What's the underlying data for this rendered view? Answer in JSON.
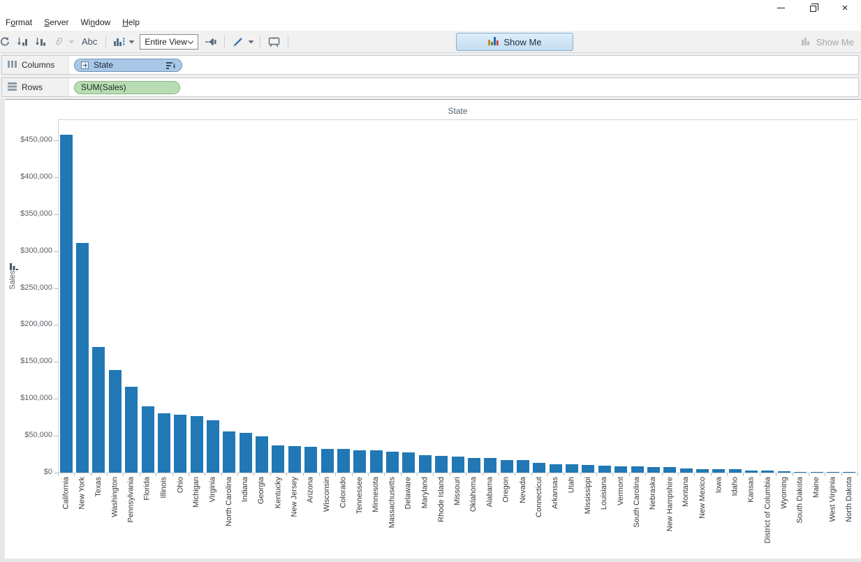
{
  "window": {
    "controls": [
      {
        "name": "minimize"
      },
      {
        "name": "restore"
      },
      {
        "name": "close"
      }
    ]
  },
  "menubar": {
    "items": [
      {
        "label": "Format",
        "underline": 1
      },
      {
        "label": "Server",
        "underline": 0
      },
      {
        "label": "Window",
        "underline": 2
      },
      {
        "label": "Help",
        "underline": 0
      }
    ]
  },
  "toolbar": {
    "icons": [
      "swap-rows-columns",
      "sort-ascending",
      "sort-descending",
      "group-members",
      "group-dropdown",
      "show-mark-labels",
      "show-hide-cards",
      "fit-selector",
      "fix-axes",
      "highlight",
      "presentation-mode"
    ],
    "abc_label": "Abc",
    "fit_selector": {
      "value": "Entire View"
    },
    "show_me_button": {
      "label": "Show Me"
    },
    "show_me_disabled": {
      "label": "Show Me"
    }
  },
  "shelves": {
    "columns": {
      "label": "Columns",
      "pill": {
        "label": "State",
        "type": "dimension",
        "color": "#a9c7e7",
        "has_expand": true,
        "has_sort": true
      }
    },
    "rows": {
      "label": "Rows",
      "pill": {
        "label": "SUM(Sales)",
        "type": "measure",
        "color": "#b9dcb4"
      }
    }
  },
  "chart_data": {
    "type": "bar",
    "title": "State",
    "xlabel": "State",
    "ylabel": "Sales",
    "series_name": "SUM(Sales)",
    "sort": "descending by value",
    "grid": false,
    "legend": null,
    "bar_color": "#2178b5",
    "ylim": [
      0,
      470000
    ],
    "ytick_step": 50000,
    "ytick_labels": [
      "$0",
      "$50,000",
      "$100,000",
      "$150,000",
      "$200,000",
      "$250,000",
      "$300,000",
      "$350,000",
      "$400,000",
      "$450,000"
    ],
    "categories": [
      "California",
      "New York",
      "Texas",
      "Washington",
      "Pennsylvania",
      "Florida",
      "Illinois",
      "Ohio",
      "Michigan",
      "Virginia",
      "North Carolina",
      "Indiana",
      "Georgia",
      "Kentucky",
      "New Jersey",
      "Arizona",
      "Wisconsin",
      "Colorado",
      "Tennessee",
      "Minnesota",
      "Massachusetts",
      "Delaware",
      "Maryland",
      "Rhode Island",
      "Missouri",
      "Oklahoma",
      "Alabama",
      "Oregon",
      "Nevada",
      "Connecticut",
      "Arkansas",
      "Utah",
      "Mississippi",
      "Louisiana",
      "Vermont",
      "South Carolina",
      "Nebraska",
      "New Hampshire",
      "Montana",
      "New Mexico",
      "Iowa",
      "Idaho",
      "Kansas",
      "District of Columbia",
      "Wyoming",
      "South Dakota",
      "Maine",
      "West Virginia",
      "North Dakota"
    ],
    "values": [
      457688,
      310876,
      170188,
      138641,
      116512,
      89474,
      80166,
      78258,
      76270,
      70637,
      55603,
      53555,
      49096,
      36592,
      35764,
      35282,
      32115,
      32108,
      30662,
      29863,
      28634,
      27451,
      23706,
      22628,
      22205,
      19683,
      19511,
      17431,
      16729,
      13384,
      11678,
      11220,
      10771,
      9217,
      8929,
      8482,
      7465,
      7293,
      5589,
      4784,
      4580,
      4382,
      2914,
      2865,
      1603,
      1316,
      1271,
      1210,
      920
    ]
  }
}
